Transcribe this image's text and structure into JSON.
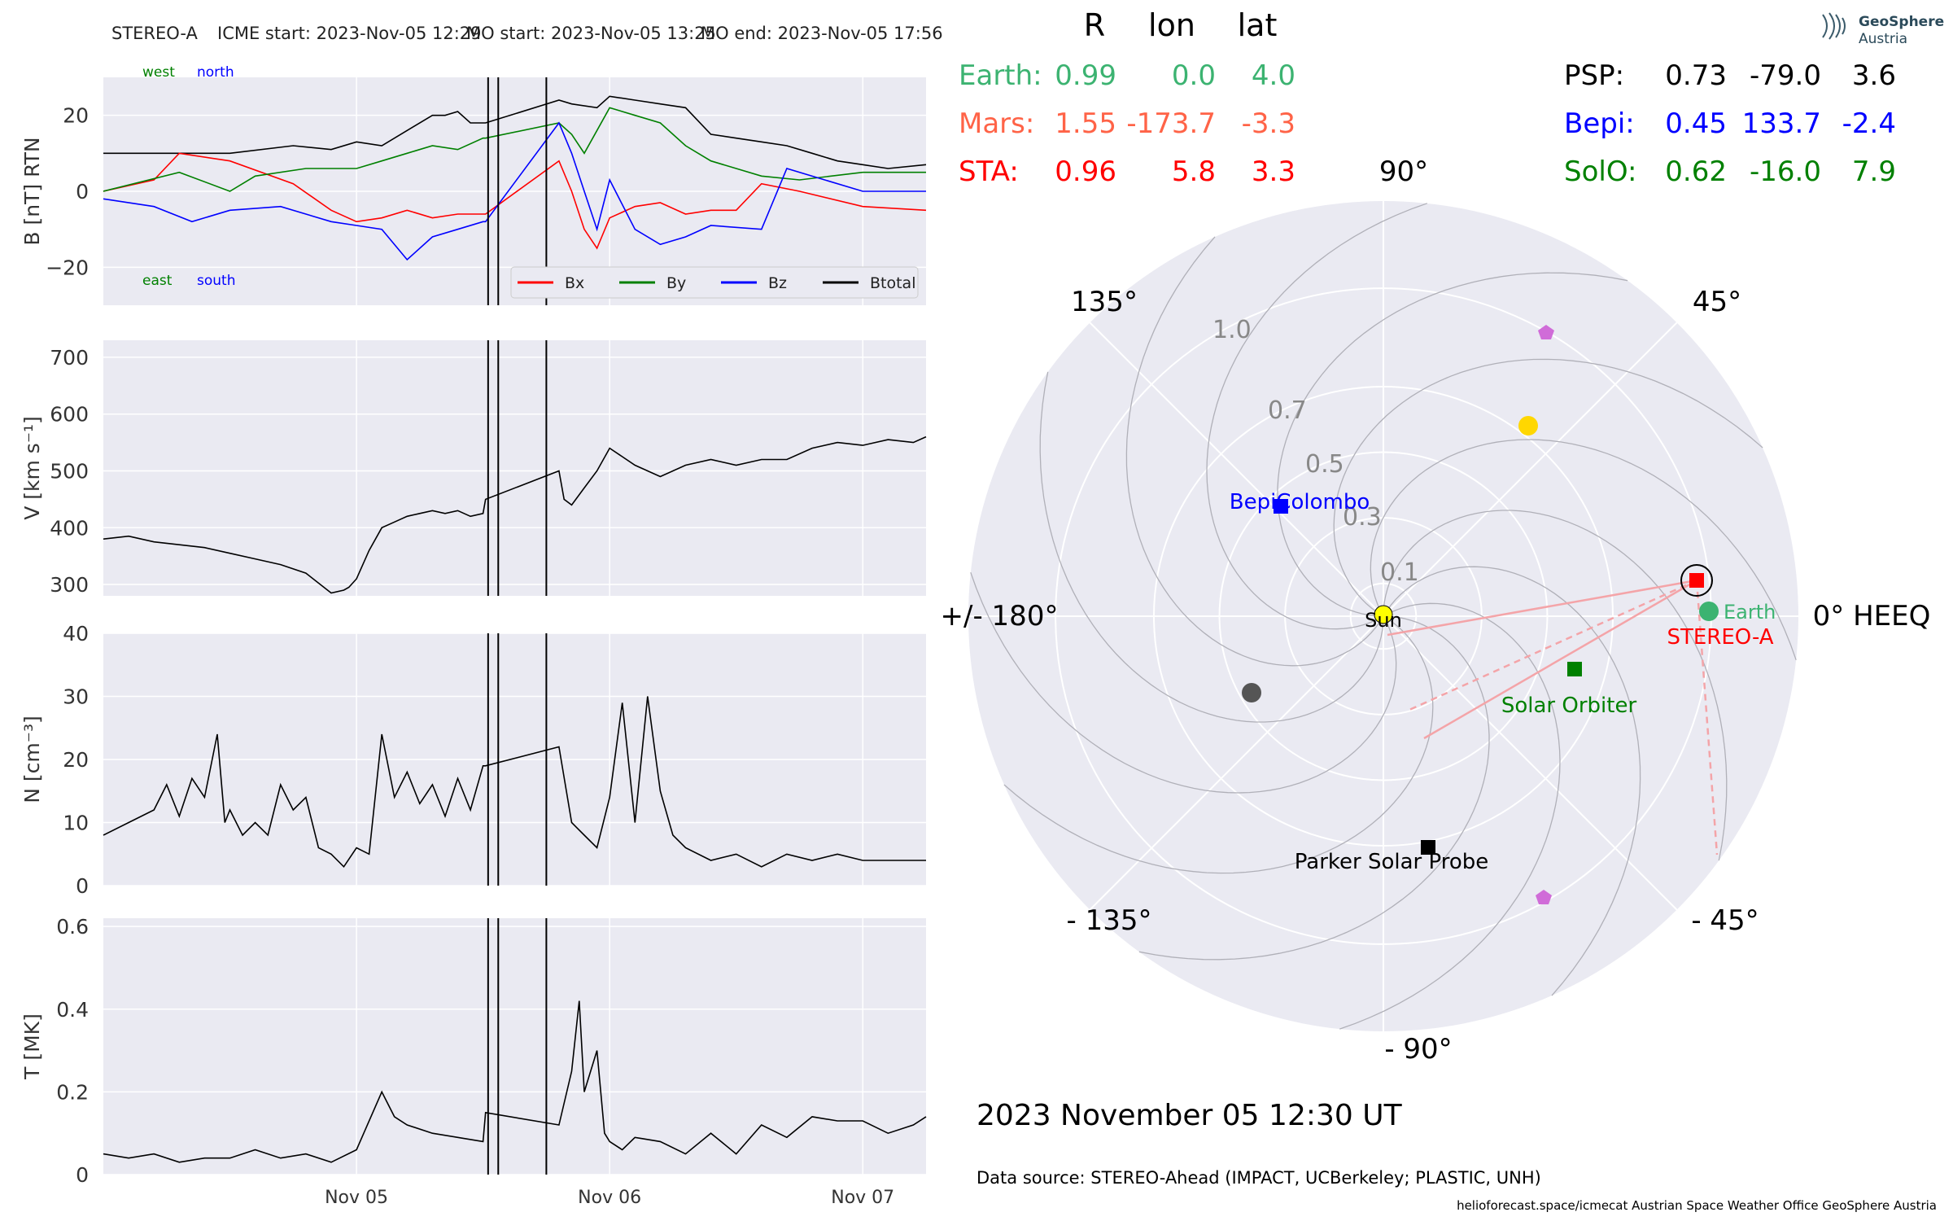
{
  "colors": {
    "panel_bg": "#eaeaf2",
    "grid": "#ffffff",
    "bx": "#ff0000",
    "by": "#008000",
    "bz": "#0000ff",
    "btotal": "#000000",
    "earth": "#3cb371",
    "mars": "#ff6347",
    "sta": "#ff0000",
    "psp": "#000000",
    "bepi": "#0000ff",
    "solo": "#008000"
  },
  "header": {
    "spacecraft": "STEREO-A",
    "icme_start": "ICME start: 2023-Nov-05 12:29",
    "mo_start": "MO start: 2023-Nov-05 13:25",
    "mo_end": "MO end: 2023-Nov-05 17:56"
  },
  "logo": {
    "line1": "GeoSphere",
    "line2": "Austria"
  },
  "table": {
    "col_r": "R",
    "col_lon": "lon",
    "col_lat": "lat",
    "left_rows": [
      {
        "name": "Earth:",
        "r": "0.99",
        "lon": "0.0",
        "lat": "4.0",
        "color": "#3cb371"
      },
      {
        "name": "Mars:",
        "r": "1.55",
        "lon": "-173.7",
        "lat": "-3.3",
        "color": "#ff6347"
      },
      {
        "name": "STA:",
        "r": "0.96",
        "lon": "5.8",
        "lat": "3.3",
        "color": "#ff0000"
      }
    ],
    "right_rows": [
      {
        "name": "PSP:",
        "r": "0.73",
        "lon": "-79.0",
        "lat": "3.6",
        "color": "#000000"
      },
      {
        "name": "Bepi:",
        "r": "0.45",
        "lon": "133.7",
        "lat": "-2.4",
        "color": "#0000ff"
      },
      {
        "name": "SolO:",
        "r": "0.62",
        "lon": "-16.0",
        "lat": "7.9",
        "color": "#008000"
      }
    ]
  },
  "polar": {
    "angle_labels": {
      "a0": "0° HEEQ",
      "a45": "45°",
      "a90": "90°",
      "a135": "135°",
      "a180": "+/- 180°",
      "am135": "- 135°",
      "am90": "- 90°",
      "am45": "- 45°"
    },
    "radial_labels": [
      "0.1",
      "0.3",
      "0.5",
      "0.7",
      "1.0"
    ],
    "labels": {
      "sun": "Sun",
      "earth": "Earth",
      "stereo": "STEREO-A",
      "bepi": "BepiColombo",
      "solo": "Solar Orbiter",
      "psp": "Parker Solar Probe"
    }
  },
  "footer": {
    "date": "2023 November 05  12:30 UT",
    "source": "Data source: STEREO-Ahead (IMPACT, UCBerkeley; PLASTIC, UNH)",
    "credits": "helioforecast.space/icmecat   Austrian Space Weather Office   GeoSphere Austria"
  },
  "chart_data": [
    {
      "type": "line",
      "title": "STEREO-A    ICME start: 2023-Nov-05 12:29   MO start: 2023-Nov-05 13:25   MO end: 2023-Nov-05 17:56",
      "ylabel": "B [nT] RTN",
      "ylim": [
        -30,
        30
      ],
      "yticks": [
        20,
        0,
        -20
      ],
      "ytick_labels": [
        "20",
        "0",
        "−20"
      ],
      "annotations": {
        "west": "west",
        "north": "north",
        "east": "east",
        "south": "south"
      },
      "legend": [
        "Bx",
        "By",
        "Bz",
        "Btotal"
      ],
      "legend_position": "bottom-right",
      "x_unit": "days since 2023-11-04 00:00",
      "xlim": [
        0,
        3.25
      ],
      "series": [
        {
          "name": "Btotal",
          "color": "#000000",
          "x": [
            0,
            0.25,
            0.5,
            0.75,
            0.9,
            1.0,
            1.1,
            1.2,
            1.3,
            1.35,
            1.4,
            1.45,
            1.5,
            1.51,
            1.8,
            1.85,
            1.95,
            2.0,
            2.1,
            2.2,
            2.3,
            2.4,
            2.5,
            2.6,
            2.7,
            2.8,
            2.9,
            3.0,
            3.1,
            3.25
          ],
          "values": [
            10,
            10,
            10,
            12,
            11,
            13,
            12,
            16,
            20,
            20,
            21,
            18,
            18,
            18,
            24,
            23,
            22,
            25,
            24,
            23,
            22,
            15,
            14,
            13,
            12,
            10,
            8,
            7,
            6,
            7
          ]
        },
        {
          "name": "Bx",
          "color": "#ff0000",
          "x": [
            0,
            0.2,
            0.3,
            0.5,
            0.75,
            0.9,
            1.0,
            1.1,
            1.2,
            1.3,
            1.4,
            1.5,
            1.51,
            1.8,
            1.85,
            1.9,
            1.95,
            2.0,
            2.1,
            2.2,
            2.3,
            2.4,
            2.5,
            2.6,
            2.75,
            3.0,
            3.25
          ],
          "values": [
            0,
            3,
            10,
            8,
            2,
            -5,
            -8,
            -7,
            -5,
            -7,
            -6,
            -6,
            -6,
            8,
            0,
            -10,
            -15,
            -7,
            -4,
            -3,
            -6,
            -5,
            -5,
            2,
            0,
            -4,
            -5
          ]
        },
        {
          "name": "By",
          "color": "#008000",
          "x": [
            0,
            0.3,
            0.5,
            0.6,
            0.8,
            1.0,
            1.1,
            1.2,
            1.3,
            1.4,
            1.5,
            1.51,
            1.8,
            1.85,
            1.9,
            2.0,
            2.1,
            2.2,
            2.3,
            2.4,
            2.5,
            2.6,
            2.75,
            3.0,
            3.25
          ],
          "values": [
            0,
            5,
            0,
            4,
            6,
            6,
            8,
            10,
            12,
            11,
            14,
            14,
            18,
            15,
            10,
            22,
            20,
            18,
            12,
            8,
            6,
            4,
            3,
            5,
            5
          ]
        },
        {
          "name": "Bz",
          "color": "#0000ff",
          "x": [
            0,
            0.2,
            0.35,
            0.5,
            0.7,
            0.9,
            1.0,
            1.1,
            1.2,
            1.3,
            1.4,
            1.5,
            1.51,
            1.8,
            1.85,
            1.9,
            1.95,
            2.0,
            2.1,
            2.2,
            2.3,
            2.4,
            2.6,
            2.7,
            3.0,
            3.25
          ],
          "values": [
            -2,
            -4,
            -8,
            -5,
            -4,
            -8,
            -9,
            -10,
            -18,
            -12,
            -10,
            -8,
            -8,
            18,
            10,
            0,
            -10,
            3,
            -10,
            -14,
            -12,
            -9,
            -10,
            6,
            0,
            0
          ]
        }
      ],
      "vlines": [
        1.52,
        1.56,
        1.75
      ]
    },
    {
      "type": "line",
      "ylabel": "V [km s⁻¹]",
      "ylim": [
        280,
        730
      ],
      "yticks": [
        700,
        600,
        500,
        400,
        300
      ],
      "x_unit": "days since 2023-11-04 00:00",
      "xlim": [
        0,
        3.25
      ],
      "series": [
        {
          "name": "V",
          "color": "#000000",
          "x": [
            0,
            0.1,
            0.2,
            0.3,
            0.4,
            0.5,
            0.6,
            0.7,
            0.8,
            0.9,
            0.95,
            0.97,
            1.0,
            1.05,
            1.1,
            1.15,
            1.2,
            1.25,
            1.3,
            1.35,
            1.4,
            1.45,
            1.5,
            1.51,
            1.8,
            1.82,
            1.85,
            1.9,
            1.95,
            2.0,
            2.1,
            2.2,
            2.3,
            2.4,
            2.5,
            2.6,
            2.7,
            2.8,
            2.9,
            3.0,
            3.1,
            3.2,
            3.25
          ],
          "values": [
            380,
            385,
            375,
            370,
            365,
            355,
            345,
            335,
            320,
            285,
            290,
            295,
            310,
            360,
            400,
            410,
            420,
            425,
            430,
            425,
            430,
            420,
            425,
            450,
            500,
            450,
            440,
            470,
            500,
            540,
            510,
            490,
            510,
            520,
            510,
            520,
            520,
            540,
            550,
            545,
            555,
            550,
            560
          ]
        }
      ],
      "vlines": [
        1.52,
        1.56,
        1.75
      ]
    },
    {
      "type": "line",
      "ylabel": "N [cm⁻³]",
      "ylim": [
        0,
        40
      ],
      "yticks": [
        40,
        30,
        20,
        10,
        0
      ],
      "x_unit": "days since 2023-11-04 00:00",
      "xlim": [
        0,
        3.25
      ],
      "series": [
        {
          "name": "N",
          "color": "#000000",
          "x": [
            0,
            0.1,
            0.2,
            0.25,
            0.3,
            0.35,
            0.4,
            0.45,
            0.48,
            0.5,
            0.55,
            0.6,
            0.65,
            0.7,
            0.75,
            0.8,
            0.85,
            0.9,
            0.95,
            1.0,
            1.05,
            1.1,
            1.15,
            1.2,
            1.25,
            1.3,
            1.35,
            1.4,
            1.45,
            1.5,
            1.51,
            1.8,
            1.85,
            1.9,
            1.95,
            2.0,
            2.05,
            2.1,
            2.15,
            2.2,
            2.25,
            2.3,
            2.4,
            2.5,
            2.6,
            2.7,
            2.8,
            2.9,
            3.0,
            3.1,
            3.25
          ],
          "values": [
            8,
            10,
            12,
            16,
            11,
            17,
            14,
            24,
            10,
            12,
            8,
            10,
            8,
            16,
            12,
            14,
            6,
            5,
            3,
            6,
            5,
            24,
            14,
            18,
            13,
            16,
            11,
            17,
            12,
            19,
            19,
            22,
            10,
            8,
            6,
            14,
            29,
            10,
            30,
            15,
            8,
            6,
            4,
            5,
            3,
            5,
            4,
            5,
            4,
            4,
            4
          ]
        }
      ],
      "vlines": [
        1.52,
        1.56,
        1.75
      ]
    },
    {
      "type": "line",
      "ylabel": "T [MK]",
      "ylim": [
        0,
        0.62
      ],
      "yticks": [
        0.6,
        0.4,
        0.2,
        0.0
      ],
      "xticks": [
        1.0,
        2.0,
        3.0
      ],
      "xtick_labels": [
        "Nov 05",
        "Nov 06",
        "Nov 07"
      ],
      "x_unit": "days since 2023-11-04 00:00",
      "xlim": [
        0,
        3.25
      ],
      "series": [
        {
          "name": "T",
          "color": "#000000",
          "x": [
            0,
            0.1,
            0.2,
            0.3,
            0.4,
            0.5,
            0.6,
            0.7,
            0.8,
            0.9,
            1.0,
            1.1,
            1.15,
            1.2,
            1.3,
            1.4,
            1.5,
            1.51,
            1.8,
            1.85,
            1.88,
            1.9,
            1.95,
            1.98,
            2.0,
            2.05,
            2.1,
            2.2,
            2.3,
            2.4,
            2.5,
            2.6,
            2.7,
            2.8,
            2.9,
            3.0,
            3.1,
            3.2,
            3.25
          ],
          "values": [
            0.05,
            0.04,
            0.05,
            0.03,
            0.04,
            0.04,
            0.06,
            0.04,
            0.05,
            0.03,
            0.06,
            0.2,
            0.14,
            0.12,
            0.1,
            0.09,
            0.08,
            0.15,
            0.12,
            0.25,
            0.42,
            0.2,
            0.3,
            0.1,
            0.08,
            0.06,
            0.09,
            0.08,
            0.05,
            0.1,
            0.05,
            0.12,
            0.09,
            0.14,
            0.13,
            0.13,
            0.1,
            0.12,
            0.14
          ]
        }
      ],
      "vlines": [
        1.52,
        1.56,
        1.75
      ]
    }
  ]
}
